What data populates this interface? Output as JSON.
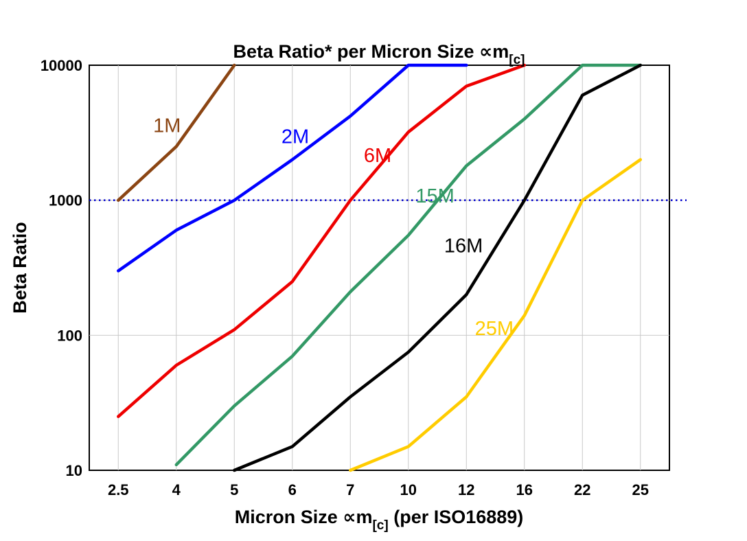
{
  "chart_data": {
    "type": "line",
    "title": "Beta Ratio* per Micron Size ∝m[c]",
    "title_main": "Beta Ratio* per Micron Size ∝m",
    "title_sub": "[c]",
    "xlabel": "Micron Size ∝m[c] (per ISO16889)",
    "xlabel_main": "Micron Size ∝m",
    "xlabel_sub": "[c]",
    "xlabel_suffix": " (per ISO16889)",
    "ylabel": "Beta Ratio",
    "x_categories": [
      "2.5",
      "4",
      "5",
      "6",
      "7",
      "10",
      "12",
      "16",
      "22",
      "25"
    ],
    "y_scale": "log",
    "ylim": [
      10,
      10000
    ],
    "y_ticks": [
      10,
      100,
      1000,
      10000
    ],
    "grid_y": [
      100,
      1000
    ],
    "grid_on": true,
    "legend_position": "inline-labels",
    "reference_line": {
      "y": 1000,
      "color": "#0000cc",
      "style": "dotted"
    },
    "series": [
      {
        "name": "1M",
        "color": "#8B4513",
        "values": [
          1000,
          2500,
          10000,
          null,
          null,
          null,
          null,
          null,
          null,
          null
        ],
        "label": {
          "ci": 0.84,
          "v": 3500
        }
      },
      {
        "name": "2M",
        "color": "#0000ff",
        "values": [
          300,
          600,
          1000,
          2000,
          4200,
          10000,
          10000,
          null,
          null,
          null
        ],
        "label": {
          "ci": 3.05,
          "v": 2900
        }
      },
      {
        "name": "6M",
        "color": "#ee0000",
        "values": [
          25,
          60,
          110,
          250,
          1000,
          3200,
          7000,
          10000,
          null,
          null
        ],
        "label": {
          "ci": 4.47,
          "v": 2100
        }
      },
      {
        "name": "15M",
        "color": "#339966",
        "values": [
          null,
          11,
          30,
          70,
          210,
          550,
          1800,
          4000,
          10000,
          10000
        ],
        "label": {
          "ci": 5.46,
          "v": 1050
        }
      },
      {
        "name": "16M",
        "color": "#000000",
        "values": [
          null,
          null,
          10,
          15,
          35,
          75,
          200,
          1000,
          6000,
          10000
        ],
        "label": {
          "ci": 5.95,
          "v": 450
        }
      },
      {
        "name": "25M",
        "color": "#ffcc00",
        "values": [
          null,
          null,
          null,
          null,
          7,
          15,
          35,
          140,
          1000,
          2000
        ],
        "label": {
          "ci": 6.48,
          "v": 110
        }
      }
    ]
  }
}
